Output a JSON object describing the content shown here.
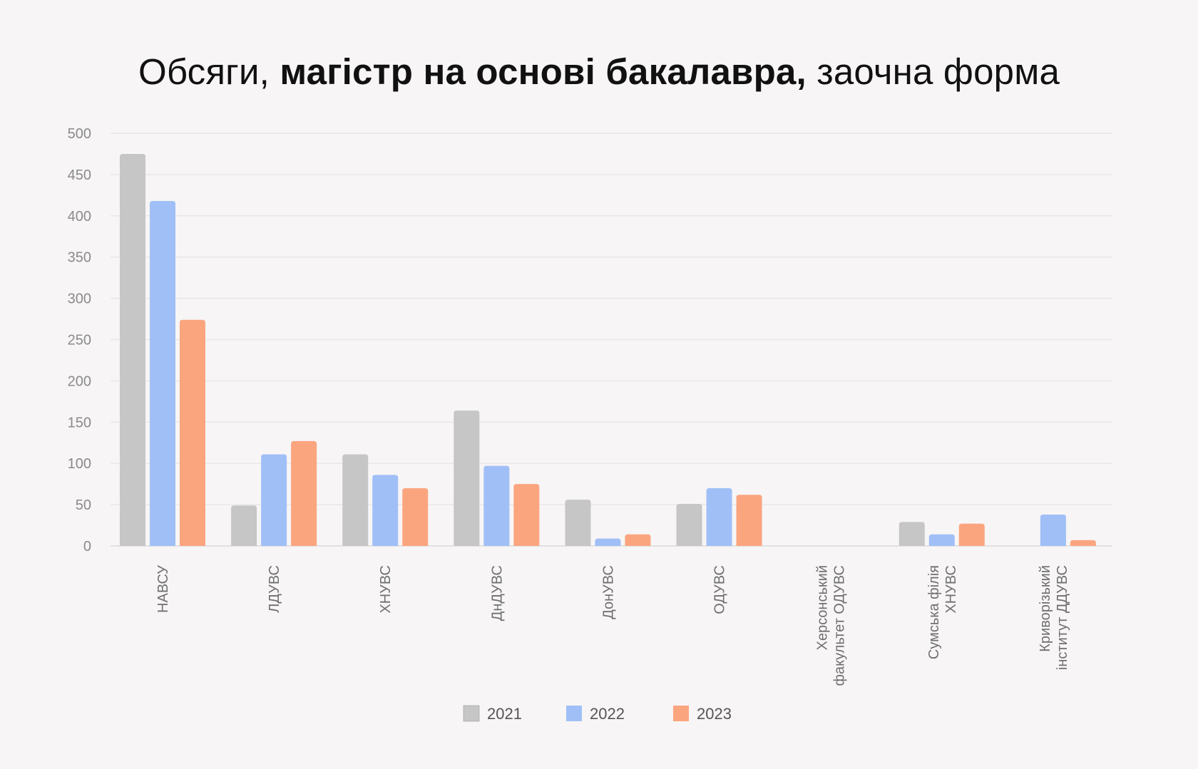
{
  "title": {
    "part1": "Обсяги, ",
    "bold": "магістр на основі бакалавра,",
    "part3": " заочна форма"
  },
  "chart_data": {
    "type": "bar",
    "categories": [
      [
        "НАВСУ"
      ],
      [
        "ЛДУВС"
      ],
      [
        "ХНУВС"
      ],
      [
        "ДнДУВС"
      ],
      [
        "ДонУВС"
      ],
      [
        "ОДУВС"
      ],
      [
        "Херсонський",
        "факультет ОДУВС"
      ],
      [
        "Сумська філія",
        "ХНУВС"
      ],
      [
        "Криворізький",
        "інститут ДДУВС"
      ]
    ],
    "series": [
      {
        "name": "2021",
        "color": "#c6c6c6",
        "values": [
          475,
          49,
          111,
          164,
          56,
          51,
          0,
          29,
          0
        ]
      },
      {
        "name": "2022",
        "color": "#a0bff7",
        "values": [
          418,
          111,
          86,
          97,
          9,
          70,
          0,
          14,
          38
        ]
      },
      {
        "name": "2023",
        "color": "#fba57f",
        "values": [
          274,
          127,
          70,
          75,
          14,
          62,
          0,
          27,
          7
        ]
      }
    ],
    "y_ticks": [
      0,
      50,
      100,
      150,
      200,
      250,
      300,
      350,
      400,
      450,
      500
    ],
    "ylim": [
      0,
      500
    ],
    "xlabel": "",
    "ylabel": "",
    "grid": true,
    "legend_position": "bottom-center"
  }
}
